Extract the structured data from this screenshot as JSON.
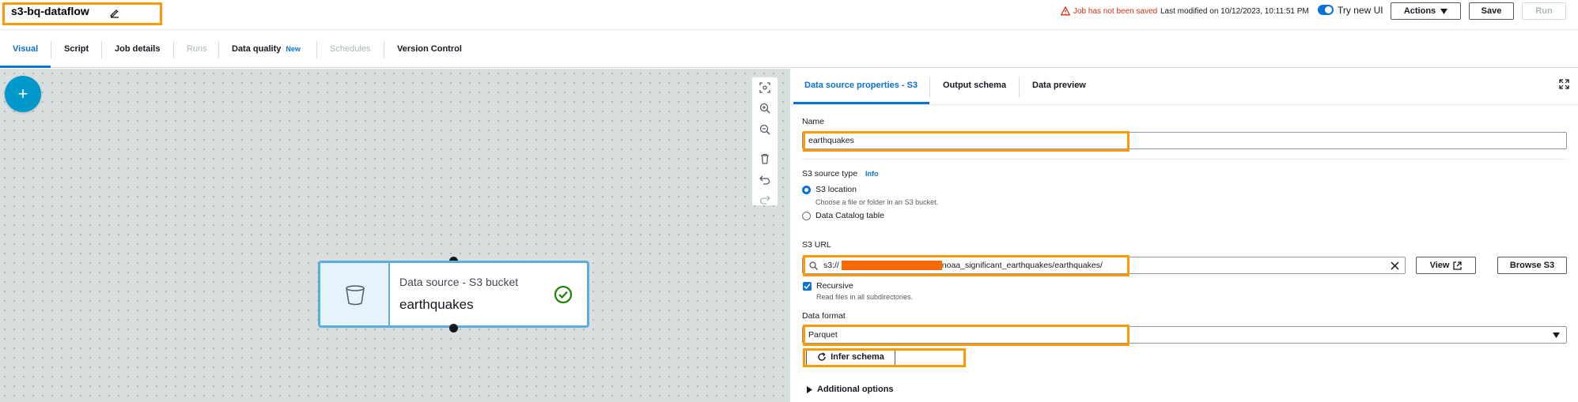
{
  "header": {
    "job_title": "s3-bq-dataflow",
    "unsaved_warning": "Job has not been saved",
    "last_modified": "Last modified on 10/12/2023, 10:11:51 PM",
    "try_new_ui": "Try new UI",
    "actions_label": "Actions",
    "save_label": "Save",
    "run_label": "Run"
  },
  "tabs": [
    {
      "label": "Visual"
    },
    {
      "label": "Script"
    },
    {
      "label": "Job details"
    },
    {
      "label": "Runs"
    },
    {
      "label": "Data quality",
      "badge": "New"
    },
    {
      "label": "Schedules"
    },
    {
      "label": "Version Control"
    }
  ],
  "canvas": {
    "add_button": "+",
    "node": {
      "type_label": "Data source - S3 bucket",
      "name": "earthquakes"
    }
  },
  "panel": {
    "tabs": [
      {
        "label": "Data source properties - S3"
      },
      {
        "label": "Output schema"
      },
      {
        "label": "Data preview"
      }
    ],
    "name_label": "Name",
    "name_value": "earthquakes",
    "source_type_label": "S3 source type",
    "info_link": "Info",
    "source_options": [
      {
        "label": "S3 location",
        "description": "Choose a file or folder in an S3 bucket."
      },
      {
        "label": "Data Catalog table"
      }
    ],
    "s3_url_label": "S3 URL",
    "s3_url_prefix": "s3://",
    "s3_url_suffix": "/noaa_significant_earthquakes/earthquakes/",
    "view_label": "View",
    "browse_label": "Browse S3",
    "recursive_label": "Recursive",
    "recursive_desc": "Read files in all subdirectories.",
    "data_format_label": "Data format",
    "data_format_value": "Parquet",
    "infer_schema_label": "Infer schema",
    "additional_options": "Additional options"
  },
  "colors": {
    "accent": "#0972d3",
    "highlight": "#ff9900",
    "warning": "#d13212",
    "node_border": "#5aaedc",
    "success": "#1d8102"
  }
}
